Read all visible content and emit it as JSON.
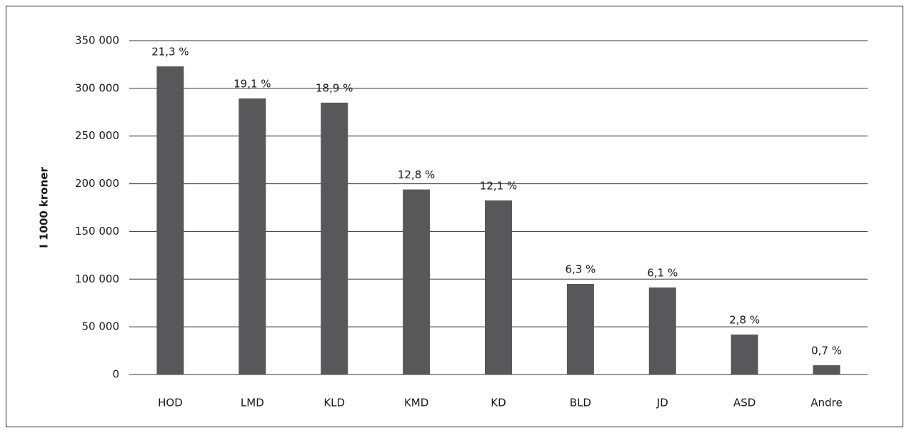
{
  "chart_data": {
    "type": "bar",
    "y_label": "I 1000 kroner",
    "categories": [
      "HOD",
      "LMD",
      "KLD",
      "KMD",
      "KD",
      "BLD",
      "JD",
      "ASD",
      "Andre"
    ],
    "values": [
      323000,
      289400,
      285000,
      194000,
      182500,
      95000,
      91200,
      41900,
      9700
    ],
    "share_labels": [
      "21,3 %",
      "19,1 %",
      "18,9 %",
      "12,8 %",
      "12,1 %",
      "6,3 %",
      "6,1 %",
      "2,8 %",
      "0,7 %"
    ],
    "color": "#58585a",
    "ylim": [
      0,
      350000
    ],
    "yticks": [
      0,
      {
        "value": 50000,
        "label": "50 000"
      },
      {
        "value": 100000,
        "label": "100 000"
      },
      {
        "value": 150000,
        "label": "150 000"
      },
      {
        "value": 200000,
        "label": "200 000"
      },
      {
        "value": 250000,
        "label": "250 000"
      },
      {
        "value": 300000,
        "label": "300 000"
      },
      {
        "value": 350000,
        "label": "350 000"
      }
    ],
    "grid": true
  }
}
